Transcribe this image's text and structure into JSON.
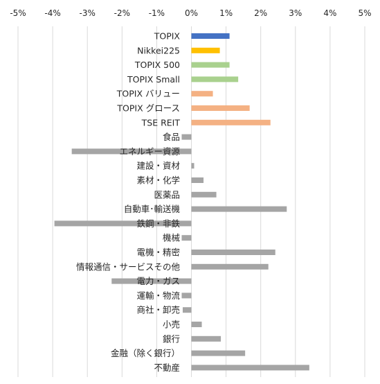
{
  "chart_data": {
    "type": "bar",
    "orientation": "horizontal",
    "x_axis_position": "top",
    "xlim": [
      -5,
      5
    ],
    "ticks": [
      -5,
      -4,
      -3,
      -2,
      -1,
      0,
      1,
      2,
      3,
      4,
      5
    ],
    "tick_labels": [
      "-5%",
      "-4%",
      "-3%",
      "-2%",
      "-1%",
      "0%",
      "1%",
      "2%",
      "3%",
      "4%",
      "5%"
    ],
    "grid": true,
    "legend": "none",
    "categories": [
      "TOPIX",
      "Nikkei225",
      "TOPIX 500",
      "TOPIX Small",
      "TOPIX バリュー",
      "TOPIX グロース",
      "TSE REIT",
      "食品",
      "エネルギー資源",
      "建設・資材",
      "素材・化学",
      "医薬品",
      "自動車･輸送機",
      "鉄鋼・非鉄",
      "機械",
      "電機・精密",
      "情報通信・サービスその他",
      "電力・ガス",
      "運輸・物流",
      "商社・卸売",
      "小売",
      "銀行",
      "金融（除く銀行）",
      "不動産"
    ],
    "values": [
      1.1,
      0.82,
      1.1,
      1.35,
      0.62,
      1.68,
      2.28,
      -0.28,
      -3.45,
      0.08,
      0.35,
      0.72,
      2.75,
      -3.95,
      -0.28,
      2.42,
      2.22,
      -2.3,
      -0.28,
      -0.25,
      0.3,
      0.85,
      1.55,
      3.4
    ],
    "colors": [
      "#4472c4",
      "#ffc000",
      "#a9d18e",
      "#a9d18e",
      "#f4b183",
      "#f4b183",
      "#f4b183",
      "#a5a5a5",
      "#a5a5a5",
      "#a5a5a5",
      "#a5a5a5",
      "#a5a5a5",
      "#a5a5a5",
      "#a5a5a5",
      "#a5a5a5",
      "#a5a5a5",
      "#a5a5a5",
      "#a5a5a5",
      "#a5a5a5",
      "#a5a5a5",
      "#a5a5a5",
      "#a5a5a5",
      "#a5a5a5",
      "#a5a5a5"
    ]
  }
}
